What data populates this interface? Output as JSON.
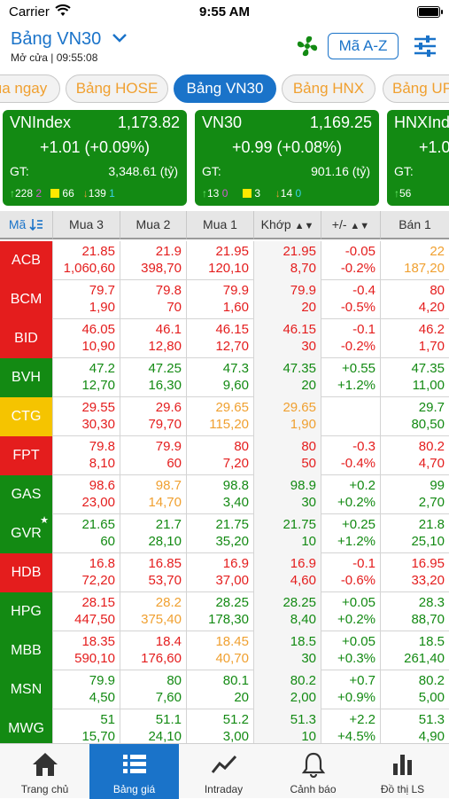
{
  "status": {
    "carrier": "Carrier",
    "time": "9:55 AM"
  },
  "header": {
    "title": "Bảng VN30",
    "session": "Mở cửa | 09:55:08",
    "sort_label": "Mã A-Z"
  },
  "tabs": [
    {
      "label": "ua ngay",
      "active": false
    },
    {
      "label": "Bảng HOSE",
      "active": false
    },
    {
      "label": "Bảng VN30",
      "active": true
    },
    {
      "label": "Bảng HNX",
      "active": false
    },
    {
      "label": "Bảng UP",
      "active": false
    }
  ],
  "cards": [
    {
      "name": "VNIndex",
      "value": "1,173.82",
      "change": "+1.01 (+0.09%)",
      "gt_label": "GT:",
      "gt_value": "3,348.61 (tỷ)",
      "up": "228",
      "ceil": "2",
      "ref": "66",
      "down": "139",
      "floor": "1"
    },
    {
      "name": "VN30",
      "value": "1,169.25",
      "change": "+0.99 (+0.08%)",
      "gt_label": "GT:",
      "gt_value": "901.16 (tỷ)",
      "up": "13",
      "ceil": "0",
      "ref": "3",
      "down": "14",
      "floor": "0"
    },
    {
      "name": "HNXInd",
      "value": "",
      "change": "+1.0",
      "gt_label": "GT:",
      "gt_value": "",
      "up": "56",
      "ceil": "",
      "ref": "",
      "down": "",
      "floor": ""
    }
  ],
  "table": {
    "headers": {
      "symbol": "Mã",
      "bid3": "Mua 3",
      "bid2": "Mua 2",
      "bid1": "Mua 1",
      "match": "Khớp",
      "change": "+/-",
      "ask1": "Bán 1"
    },
    "rows": [
      {
        "sym": "ACB",
        "symcolor": "#e41d1d",
        "star": "",
        "bid3": [
          "21.85",
          "1,060,60"
        ],
        "bid2": [
          "21.9",
          "398,70"
        ],
        "bid1": [
          "21.95",
          "120,10"
        ],
        "match": [
          "21.95",
          "8,70"
        ],
        "chg": [
          "-0.05",
          "-0.2%"
        ],
        "ask1": [
          "22",
          "187,20"
        ],
        "colors": [
          "red",
          "red",
          "red",
          "red",
          "red",
          "orange"
        ]
      },
      {
        "sym": "BCM",
        "symcolor": "#e41d1d",
        "star": "",
        "bid3": [
          "79.7",
          "1,90"
        ],
        "bid2": [
          "79.8",
          "70"
        ],
        "bid1": [
          "79.9",
          "1,60"
        ],
        "match": [
          "79.9",
          "20"
        ],
        "chg": [
          "-0.4",
          "-0.5%"
        ],
        "ask1": [
          "80",
          "4,20"
        ],
        "colors": [
          "red",
          "red",
          "red",
          "red",
          "red",
          "red"
        ]
      },
      {
        "sym": "BID",
        "symcolor": "#e41d1d",
        "star": "",
        "bid3": [
          "46.05",
          "10,90"
        ],
        "bid2": [
          "46.1",
          "12,80"
        ],
        "bid1": [
          "46.15",
          "12,70"
        ],
        "match": [
          "46.15",
          "30"
        ],
        "chg": [
          "-0.1",
          "-0.2%"
        ],
        "ask1": [
          "46.2",
          "1,70"
        ],
        "colors": [
          "red",
          "red",
          "red",
          "red",
          "red",
          "red"
        ]
      },
      {
        "sym": "BVH",
        "symcolor": "#138a13",
        "star": "",
        "bid3": [
          "47.2",
          "12,70"
        ],
        "bid2": [
          "47.25",
          "16,30"
        ],
        "bid1": [
          "47.3",
          "9,60"
        ],
        "match": [
          "47.35",
          "20"
        ],
        "chg": [
          "+0.55",
          "+1.2%"
        ],
        "ask1": [
          "47.35",
          "11,00"
        ],
        "colors": [
          "green",
          "green",
          "green",
          "green",
          "green",
          "green"
        ]
      },
      {
        "sym": "CTG",
        "symcolor": "#f5c400",
        "star": "",
        "bid3": [
          "29.55",
          "30,30"
        ],
        "bid2": [
          "29.6",
          "79,70"
        ],
        "bid1": [
          "29.65",
          "115,20"
        ],
        "match": [
          "29.65",
          "1,90"
        ],
        "chg": [
          "",
          ""
        ],
        "ask1": [
          "29.7",
          "80,50"
        ],
        "colors": [
          "red",
          "red",
          "orange",
          "orange",
          "orange",
          "green"
        ]
      },
      {
        "sym": "FPT",
        "symcolor": "#e41d1d",
        "star": "",
        "bid3": [
          "79.8",
          "8,10"
        ],
        "bid2": [
          "79.9",
          "60"
        ],
        "bid1": [
          "80",
          "7,20"
        ],
        "match": [
          "80",
          "50"
        ],
        "chg": [
          "-0.3",
          "-0.4%"
        ],
        "ask1": [
          "80.2",
          "4,70"
        ],
        "colors": [
          "red",
          "red",
          "red",
          "red",
          "red",
          "red"
        ]
      },
      {
        "sym": "GAS",
        "symcolor": "#138a13",
        "star": "",
        "bid3": [
          "98.6",
          "23,00"
        ],
        "bid2": [
          "98.7",
          "14,70"
        ],
        "bid1": [
          "98.8",
          "3,40"
        ],
        "match": [
          "98.9",
          "30"
        ],
        "chg": [
          "+0.2",
          "+0.2%"
        ],
        "ask1": [
          "99",
          "2,70"
        ],
        "colors": [
          "red",
          "orange",
          "green",
          "green",
          "green",
          "green"
        ]
      },
      {
        "sym": "GVR",
        "symcolor": "#138a13",
        "star": "★",
        "bid3": [
          "21.65",
          "60"
        ],
        "bid2": [
          "21.7",
          "28,10"
        ],
        "bid1": [
          "21.75",
          "35,20"
        ],
        "match": [
          "21.75",
          "10"
        ],
        "chg": [
          "+0.25",
          "+1.2%"
        ],
        "ask1": [
          "21.8",
          "25,10"
        ],
        "colors": [
          "green",
          "green",
          "green",
          "green",
          "green",
          "green"
        ]
      },
      {
        "sym": "HDB",
        "symcolor": "#e41d1d",
        "star": "",
        "bid3": [
          "16.8",
          "72,20"
        ],
        "bid2": [
          "16.85",
          "53,70"
        ],
        "bid1": [
          "16.9",
          "37,00"
        ],
        "match": [
          "16.9",
          "4,60"
        ],
        "chg": [
          "-0.1",
          "-0.6%"
        ],
        "ask1": [
          "16.95",
          "33,20"
        ],
        "colors": [
          "red",
          "red",
          "red",
          "red",
          "red",
          "red"
        ]
      },
      {
        "sym": "HPG",
        "symcolor": "#138a13",
        "star": "",
        "bid3": [
          "28.15",
          "447,50"
        ],
        "bid2": [
          "28.2",
          "375,40"
        ],
        "bid1": [
          "28.25",
          "178,30"
        ],
        "match": [
          "28.25",
          "8,40"
        ],
        "chg": [
          "+0.05",
          "+0.2%"
        ],
        "ask1": [
          "28.3",
          "88,70"
        ],
        "colors": [
          "red",
          "orange",
          "green",
          "green",
          "green",
          "green"
        ]
      },
      {
        "sym": "MBB",
        "symcolor": "#138a13",
        "star": "",
        "bid3": [
          "18.35",
          "590,10"
        ],
        "bid2": [
          "18.4",
          "176,60"
        ],
        "bid1": [
          "18.45",
          "40,70"
        ],
        "match": [
          "18.5",
          "30"
        ],
        "chg": [
          "+0.05",
          "+0.3%"
        ],
        "ask1": [
          "18.5",
          "261,40"
        ],
        "colors": [
          "red",
          "red",
          "orange",
          "green",
          "green",
          "green"
        ]
      },
      {
        "sym": "MSN",
        "symcolor": "#138a13",
        "star": "",
        "bid3": [
          "79.9",
          "4,50"
        ],
        "bid2": [
          "80",
          "7,60"
        ],
        "bid1": [
          "80.1",
          "20"
        ],
        "match": [
          "80.2",
          "2,00"
        ],
        "chg": [
          "+0.7",
          "+0.9%"
        ],
        "ask1": [
          "80.2",
          "5,00"
        ],
        "colors": [
          "green",
          "green",
          "green",
          "green",
          "green",
          "green"
        ]
      },
      {
        "sym": "MWG",
        "symcolor": "#138a13",
        "star": "",
        "bid3": [
          "51",
          "15,70"
        ],
        "bid2": [
          "51.1",
          "24,10"
        ],
        "bid1": [
          "51.2",
          "3,00"
        ],
        "match": [
          "51.3",
          "10"
        ],
        "chg": [
          "+2.2",
          "+4.5%"
        ],
        "ask1": [
          "51.3",
          "4,90"
        ],
        "colors": [
          "green",
          "green",
          "green",
          "green",
          "green",
          "green"
        ]
      }
    ]
  },
  "nav": [
    {
      "label": "Trang chủ",
      "icon": "home-icon",
      "active": false
    },
    {
      "label": "Bảng giá",
      "icon": "list-icon",
      "active": true
    },
    {
      "label": "Intraday",
      "icon": "chart-line-icon",
      "active": false
    },
    {
      "label": "Cảnh báo",
      "icon": "bell-icon",
      "active": false
    },
    {
      "label": "Đồ thị LS",
      "icon": "bar-chart-icon",
      "active": false
    }
  ],
  "colors": {
    "accent": "#1a73c9",
    "up": "#138a13",
    "down": "#e41d1d",
    "ref": "#f0a030"
  }
}
